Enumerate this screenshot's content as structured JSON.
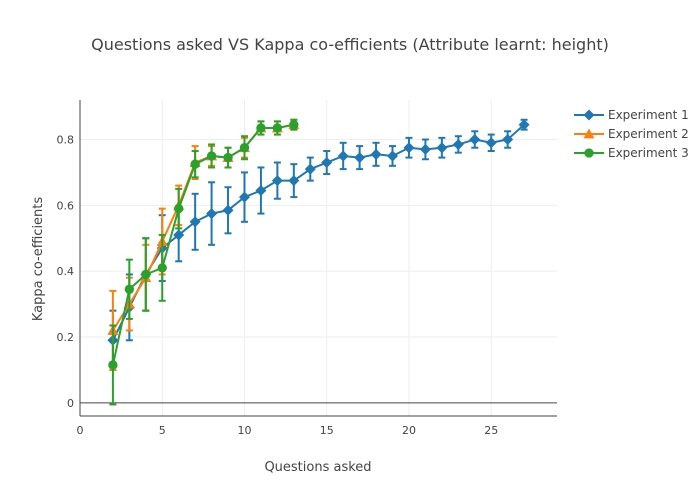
{
  "chart_data": {
    "type": "line",
    "title": "Questions asked VS Kappa co-efficients (Attribute learnt: height)",
    "xlabel": "Questions asked",
    "ylabel": "Kappa co-efficients",
    "xlim": [
      0,
      29
    ],
    "ylim": [
      -0.04,
      0.92
    ],
    "x_ticks": [
      0,
      5,
      10,
      15,
      20,
      25
    ],
    "y_ticks": [
      0,
      0.2,
      0.4,
      0.6,
      0.8
    ],
    "grid": true,
    "legend_position": "top-right",
    "series": [
      {
        "name": "Experiment 1",
        "color": "#1f77b4",
        "marker": "diamond",
        "x": [
          2,
          3,
          4,
          5,
          6,
          7,
          8,
          9,
          10,
          11,
          12,
          13,
          14,
          15,
          16,
          17,
          18,
          19,
          20,
          21,
          22,
          23,
          24,
          25,
          26,
          27
        ],
        "y": [
          0.19,
          0.29,
          0.39,
          0.47,
          0.51,
          0.55,
          0.575,
          0.585,
          0.625,
          0.645,
          0.675,
          0.675,
          0.71,
          0.73,
          0.75,
          0.745,
          0.755,
          0.75,
          0.775,
          0.77,
          0.775,
          0.785,
          0.8,
          0.79,
          0.8,
          0.845
        ],
        "err": [
          0.09,
          0.1,
          0.11,
          0.1,
          0.08,
          0.085,
          0.095,
          0.07,
          0.075,
          0.07,
          0.055,
          0.05,
          0.035,
          0.035,
          0.04,
          0.035,
          0.035,
          0.03,
          0.03,
          0.03,
          0.03,
          0.025,
          0.025,
          0.025,
          0.025,
          0.015
        ]
      },
      {
        "name": "Experiment 2",
        "color": "#ff7f0e",
        "marker": "triangle-up",
        "x": [
          2,
          3,
          4,
          5,
          6,
          7,
          8,
          9,
          10,
          11,
          12,
          13
        ],
        "y": [
          0.22,
          0.3,
          0.38,
          0.49,
          0.6,
          0.73,
          0.75,
          0.745,
          0.775,
          0.835,
          0.835,
          0.845
        ],
        "err": [
          0.12,
          0.08,
          0.1,
          0.1,
          0.06,
          0.05,
          0.03,
          0.03,
          0.03,
          0.02,
          0.02,
          0.015
        ]
      },
      {
        "name": "Experiment 3",
        "color": "#2ca02c",
        "marker": "circle",
        "x": [
          2,
          3,
          4,
          5,
          6,
          7,
          8,
          9,
          10,
          11,
          12,
          13
        ],
        "y": [
          0.115,
          0.345,
          0.39,
          0.41,
          0.59,
          0.725,
          0.75,
          0.745,
          0.775,
          0.835,
          0.835,
          0.845
        ],
        "err": [
          0.12,
          0.09,
          0.11,
          0.1,
          0.06,
          0.04,
          0.035,
          0.03,
          0.035,
          0.02,
          0.02,
          0.015
        ]
      }
    ]
  }
}
